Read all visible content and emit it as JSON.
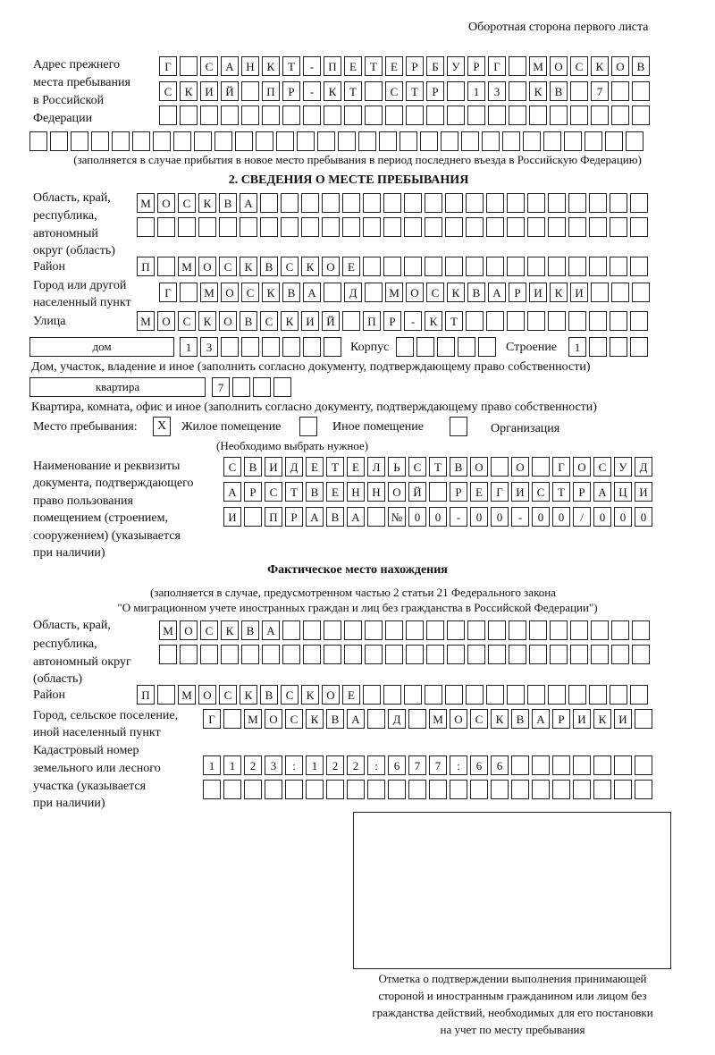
{
  "header": {
    "page_side": "Оборотная сторона первого листа"
  },
  "previous_address": {
    "label": [
      "Адрес прежнего",
      "места пребывания",
      "в Российской",
      "Федерации"
    ],
    "rows": [
      "Г САНКТ-ПЕТЕРБУРГ МОСКОВ",
      "СКИЙ ПР-КТ СТР 13 КВ 7  ",
      "                        ",
      "                              "
    ],
    "note": "(заполняется в случае прибытия в новое место пребывания в период последнего въезда в Российскую Федерацию)"
  },
  "section2": {
    "title": "2. СВЕДЕНИЯ О МЕСТЕ ПРЕБЫВАНИЯ",
    "region_label": [
      "Область, край,",
      "республика,",
      "автономный",
      "округ (область)"
    ],
    "region_rows": [
      "МОСКВА                   ",
      "                         "
    ],
    "district_label": "Район",
    "district_row": "П МОСКВСКОЕ              ",
    "city_label": [
      "Город или другой",
      "населенный пункт"
    ],
    "city_row": "Г МОСКВА Д МОСКВАРИКИ   ",
    "street_label": "Улица",
    "street_row": "МОСКОВСКИЙ ПР-КТ         ",
    "house_type": "дом",
    "house_number": "13      ",
    "korpus_label": "Корпус",
    "korpus_value": "     ",
    "building_label": "Строение",
    "building_value": "1   ",
    "house_note": "Дом, участок, владение и иное (заполнить согласно документу, подтверждающему право собственности)",
    "apartment_type": "квартира",
    "apartment_number": "7   ",
    "apartment_note": "Квартира, комната, офис и иное (заполнить согласно документу, подтверждающему право собственности)",
    "stay_place_label": "Место пребывания:",
    "stay_options": [
      {
        "label": "Жилое помещение",
        "mark": "X"
      },
      {
        "label": "Иное помещение",
        "mark": ""
      },
      {
        "label": "Организация",
        "mark": ""
      }
    ],
    "stay_note": "(Необходимо выбрать нужное)",
    "document_label": [
      "Наименование и реквизиты",
      "документа, подтверждающего",
      "право пользования",
      "помещением (строением,",
      "сооружением) (указывается",
      "при наличии)"
    ],
    "document_rows": [
      "СВИДЕТЕЛЬСТВО О ГОСУД",
      "АРСТВЕННОЙ РЕГИСТРАЦИ",
      "И ПРАВА №00-00-00/000"
    ]
  },
  "actual": {
    "title": "Фактическое место нахождения",
    "subtitle": [
      "(заполняется в случае, предусмотренном частью 2 статьи 21 Федерального закона",
      "\"О миграционном учете иностранных граждан и лиц без гражданства в Российской Федерации\")"
    ],
    "region_label": [
      "Область, край,",
      "республика,",
      "автономный округ",
      "(область)"
    ],
    "region_rows": [
      "МОСКВА                  ",
      "                        "
    ],
    "district_label": "Район",
    "district_row": "П МОСКВСКОЕ              ",
    "city_label": [
      "Город, сельское поселение,",
      "иной населенный пункт"
    ],
    "city_row": "Г МОСКВА Д МОСКВАРИКИ ",
    "cadastral_label": [
      "Кадастровый номер",
      "земельного или лесного",
      "участка (указывается",
      "при наличии)"
    ],
    "cadastral_rows": [
      "1123:122:677:66       ",
      "                      "
    ]
  },
  "stamp": {
    "caption": [
      "Отметка о подтверждении выполнения принимающей",
      "стороной и иностранным гражданином или лицом без",
      "гражданства действий, необходимых для его постановки",
      "на учет по месту пребывания"
    ]
  }
}
